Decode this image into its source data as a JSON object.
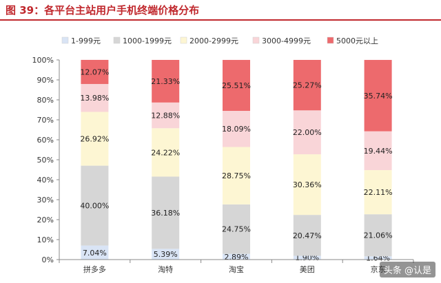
{
  "title": "图 39：各平台主站用户手机终端价格分布",
  "watermark": "头条 @认是",
  "chart_data": {
    "type": "bar",
    "stacked": true,
    "categories": [
      "拼多多",
      "淘特",
      "淘宝",
      "美团",
      "京东"
    ],
    "series": [
      {
        "name": "1-999元",
        "color": "#d9e4f5",
        "values": [
          7.04,
          5.39,
          2.89,
          1.9,
          1.64
        ]
      },
      {
        "name": "1000-1999元",
        "color": "#d6d6d6",
        "values": [
          40.0,
          36.18,
          24.75,
          20.47,
          21.06
        ]
      },
      {
        "name": "2000-2999元",
        "color": "#fdf6d3",
        "values": [
          26.92,
          24.22,
          28.75,
          30.36,
          22.11
        ]
      },
      {
        "name": "3000-4999元",
        "color": "#f9d5d8",
        "values": [
          13.98,
          12.88,
          18.09,
          22.0,
          19.44
        ]
      },
      {
        "name": "5000元以上",
        "color": "#ed6a6d",
        "values": [
          12.07,
          21.33,
          25.51,
          25.27,
          35.74
        ]
      }
    ],
    "data_labels": [
      [
        "7.04%",
        "5.39%",
        "2.89%",
        "1.90%",
        "1.64%"
      ],
      [
        "40.00%",
        "36.18%",
        "24.75%",
        "20.47%",
        "21.06%"
      ],
      [
        "26.92%",
        "24.22%",
        "28.75%",
        "30.36%",
        "22.11%"
      ],
      [
        "13.98%",
        "12.88%",
        "18.09%",
        "22.00%",
        "19.44%"
      ],
      [
        "12.07%",
        "21.33%",
        "25.51%",
        "25.27%",
        "35.74%"
      ]
    ],
    "ylim": [
      0,
      100
    ],
    "yticks": [
      "0%",
      "10%",
      "20%",
      "30%",
      "40%",
      "50%",
      "60%",
      "70%",
      "80%",
      "90%",
      "100%"
    ],
    "legend_position": "top",
    "grid": false
  }
}
